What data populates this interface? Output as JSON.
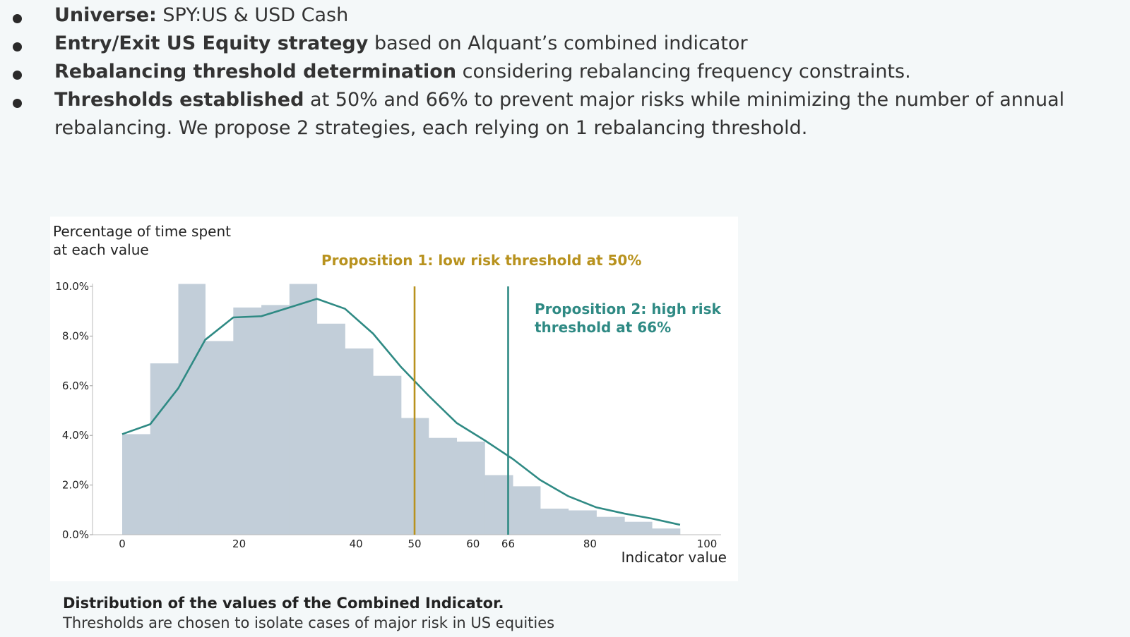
{
  "bullets": [
    {
      "bold": "Universe:",
      "rest": "SPY:US & USD Cash"
    },
    {
      "bold": "Entry/Exit US Equity strategy",
      "rest": "based on Alquant’s combined indicator"
    },
    {
      "bold": "Rebalancing threshold determination",
      "rest": "considering rebalancing frequency constraints."
    },
    {
      "bold": "Thresholds established",
      "rest": "at 50% and 66% to prevent major risks while minimizing the number of annual",
      "rest2": "rebalancing. We propose 2 strategies, each relying on 1 rebalancing threshold."
    }
  ],
  "caption": {
    "title": "Distribution of the values of the Combined Indicator.",
    "subtitle": "Thresholds are chosen to isolate cases of major risk in US equities"
  },
  "colors": {
    "hist": "#c2ced9",
    "line": "#2f8a84",
    "threshold1": "#b8921e",
    "threshold2": "#2f8a84"
  },
  "chart_data": {
    "type": "bar",
    "ylabel_line1": "Percentage of time spent",
    "ylabel_line2": "at each value",
    "xlabel": "Indicator value",
    "ylim": [
      0,
      10
    ],
    "xlim": [
      0,
      100
    ],
    "yticks": [
      "0.0%",
      "2.0%",
      "4.0%",
      "6.0%",
      "8.0%",
      "10.0%"
    ],
    "xticks": [
      0,
      20,
      40,
      50,
      60,
      66,
      80,
      100
    ],
    "bins": [
      {
        "start": 0,
        "end": 4.8,
        "value": 4.05
      },
      {
        "start": 4.8,
        "end": 9.6,
        "value": 6.9
      },
      {
        "start": 9.6,
        "end": 14.2,
        "value": 10.1
      },
      {
        "start": 14.2,
        "end": 19.0,
        "value": 7.8
      },
      {
        "start": 19.0,
        "end": 23.8,
        "value": 9.15
      },
      {
        "start": 23.8,
        "end": 28.6,
        "value": 9.25
      },
      {
        "start": 28.6,
        "end": 33.3,
        "value": 10.1
      },
      {
        "start": 33.3,
        "end": 38.1,
        "value": 8.5
      },
      {
        "start": 38.1,
        "end": 42.9,
        "value": 7.5
      },
      {
        "start": 42.9,
        "end": 47.7,
        "value": 6.4
      },
      {
        "start": 47.7,
        "end": 52.4,
        "value": 4.7
      },
      {
        "start": 52.4,
        "end": 57.2,
        "value": 3.9
      },
      {
        "start": 57.2,
        "end": 62.0,
        "value": 3.75
      },
      {
        "start": 62.0,
        "end": 66.8,
        "value": 2.4
      },
      {
        "start": 66.8,
        "end": 71.5,
        "value": 1.95
      },
      {
        "start": 71.5,
        "end": 76.3,
        "value": 1.05
      },
      {
        "start": 76.3,
        "end": 81.1,
        "value": 0.98
      },
      {
        "start": 81.1,
        "end": 85.9,
        "value": 0.72
      },
      {
        "start": 85.9,
        "end": 90.6,
        "value": 0.52
      },
      {
        "start": 90.6,
        "end": 95.4,
        "value": 0.25
      }
    ],
    "series": [
      {
        "x": [
          0,
          4.8,
          9.6,
          14.2,
          19.0,
          23.8,
          28.6,
          33.3,
          38.1,
          42.9,
          47.7,
          52.4,
          57.2,
          62.0,
          66.8,
          71.5,
          76.3,
          81.1,
          85.9,
          90.6,
          95.4
        ],
        "y": [
          4.05,
          4.45,
          5.9,
          7.85,
          8.75,
          8.8,
          9.15,
          9.5,
          9.1,
          8.1,
          6.75,
          5.6,
          4.5,
          3.8,
          3.05,
          2.2,
          1.55,
          1.1,
          0.85,
          0.65,
          0.4
        ]
      }
    ],
    "thresholds": [
      {
        "x": 50,
        "label_line1": "Proposition 1: low risk threshold at 50%",
        "label_line2": ""
      },
      {
        "x": 66,
        "label_line1": "Proposition 2: high risk",
        "label_line2": "threshold at 66%"
      }
    ]
  }
}
